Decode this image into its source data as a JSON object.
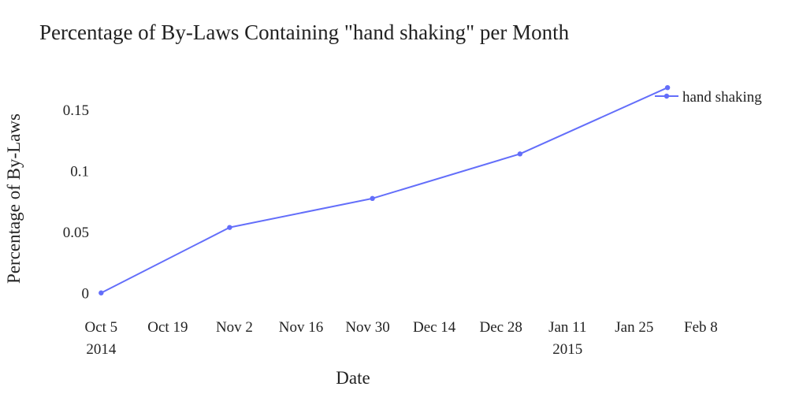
{
  "chart_data": {
    "type": "line",
    "title": "Percentage of By-Laws Containing \"hand shaking\" per Month",
    "xlabel": "Date",
    "ylabel": "Percentage of By-Laws",
    "x_ticks": [
      {
        "date": "2014-10-05",
        "label": "Oct 5",
        "sublabel": "2014"
      },
      {
        "date": "2014-10-19",
        "label": "Oct 19",
        "sublabel": ""
      },
      {
        "date": "2014-11-02",
        "label": "Nov 2",
        "sublabel": ""
      },
      {
        "date": "2014-11-16",
        "label": "Nov 16",
        "sublabel": ""
      },
      {
        "date": "2014-11-30",
        "label": "Nov 30",
        "sublabel": ""
      },
      {
        "date": "2014-12-14",
        "label": "Dec 14",
        "sublabel": ""
      },
      {
        "date": "2014-12-28",
        "label": "Dec 28",
        "sublabel": ""
      },
      {
        "date": "2015-01-11",
        "label": "Jan 11",
        "sublabel": "2015"
      },
      {
        "date": "2015-01-25",
        "label": "Jan 25",
        "sublabel": ""
      },
      {
        "date": "2015-02-08",
        "label": "Feb 8",
        "sublabel": ""
      }
    ],
    "y_ticks": [
      {
        "value": 0,
        "label": "0"
      },
      {
        "value": 0.05,
        "label": "0.05"
      },
      {
        "value": 0.1,
        "label": "0.1"
      },
      {
        "value": 0.15,
        "label": "0.15"
      }
    ],
    "xlim": [
      "2014-09-27",
      "2015-02-23"
    ],
    "ylim": [
      -0.015,
      0.175
    ],
    "grid": false,
    "legend_position": "top-right",
    "series": [
      {
        "name": "hand shaking",
        "color": "#636efa",
        "x": [
          "2014-10-05",
          "2014-11-01",
          "2014-12-01",
          "2015-01-01",
          "2015-02-01"
        ],
        "y": [
          0.0,
          0.0535,
          0.0772,
          0.1136,
          0.1678
        ]
      }
    ]
  }
}
